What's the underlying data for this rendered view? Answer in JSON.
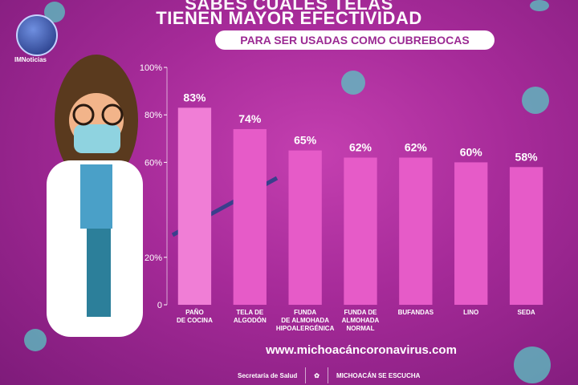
{
  "header": {
    "line1": "SABES CUÁLES TELAS",
    "line2": "TIENEN MAYOR EFECTIVIDAD",
    "subtitle": "PARA SER USADAS COMO CUBREBOCAS"
  },
  "logo": {
    "text": "IMNoticias"
  },
  "chart_data": {
    "type": "bar",
    "categories": [
      [
        "PAÑO",
        "DE COCINA"
      ],
      [
        "TELA DE",
        "ALGODÓN"
      ],
      [
        "FUNDA",
        "DE ALMOHADA",
        "HIPOALERGÉNICA"
      ],
      [
        "FUNDA DE",
        "ALMOHADA",
        "NORMAL"
      ],
      [
        "BUFANDAS"
      ],
      [
        "LINO"
      ],
      [
        "SEDA"
      ]
    ],
    "values": [
      83,
      74,
      65,
      62,
      62,
      60,
      58
    ],
    "value_labels": [
      "83%",
      "74%",
      "65%",
      "62%",
      "62%",
      "60%",
      "58%"
    ],
    "ylim": [
      0,
      100
    ],
    "yticks": [
      0,
      20,
      60,
      80,
      100
    ],
    "ytick_labels": [
      "0",
      "20%",
      "60%",
      "80%",
      "100%"
    ],
    "grid": false,
    "bar_color": "#e65bc8",
    "bar_color_light": "#f07ed6"
  },
  "footer": {
    "website": "www.michoacáncoronavirus.com",
    "secretaria": "Secretaría de Salud",
    "michoacan": "MICHOACÁN SE ESCUCHA"
  },
  "colors": {
    "background": "#a52a98",
    "accent": "#58c7c3"
  }
}
